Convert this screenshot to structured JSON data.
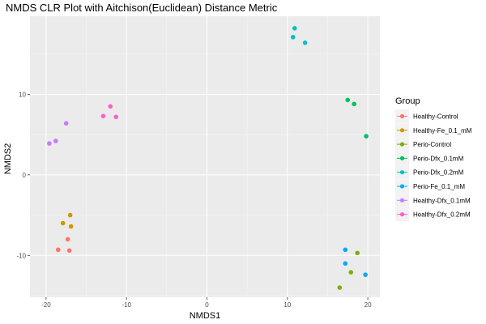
{
  "chart_data": {
    "type": "scatter",
    "title": "NMDS CLR Plot with Aitchison(Euclidean) Distance Metric",
    "xlabel": "NMDS1",
    "ylabel": "NMDS2",
    "xlim": [
      -22,
      21.5
    ],
    "ylim": [
      -15.2,
      19.7
    ],
    "xticks": [
      -20,
      -10,
      0,
      10,
      20
    ],
    "yticks": [
      -10,
      0,
      10
    ],
    "grid": true,
    "legend": {
      "title": "Group",
      "position": "right"
    },
    "series": [
      {
        "name": "Healthy-Control",
        "color": "#F8766D",
        "points": [
          [
            -18.5,
            -9.3
          ],
          [
            -17.3,
            -8.0
          ],
          [
            -17.1,
            -9.4
          ]
        ]
      },
      {
        "name": "Healthy-Fe_0.1_mM",
        "color": "#CD9600",
        "points": [
          [
            -17.0,
            -5.0
          ],
          [
            -17.9,
            -6.0
          ],
          [
            -16.9,
            -6.4
          ]
        ]
      },
      {
        "name": "Perio-Control",
        "color": "#7CAE00",
        "points": [
          [
            16.5,
            -14.0
          ],
          [
            17.9,
            -12.1
          ],
          [
            18.7,
            -9.7
          ]
        ]
      },
      {
        "name": "Perio-Dfx_0.1mM",
        "color": "#00BE67",
        "points": [
          [
            17.5,
            9.3
          ],
          [
            18.3,
            8.8
          ],
          [
            19.8,
            4.8
          ]
        ]
      },
      {
        "name": "Perio-Dfx_0.2mM",
        "color": "#00BFC4",
        "points": [
          [
            10.9,
            18.2
          ],
          [
            10.7,
            17.1
          ],
          [
            12.2,
            16.4
          ]
        ]
      },
      {
        "name": "Perio-Fe_0.1_mM",
        "color": "#00A9FF",
        "points": [
          [
            17.2,
            -9.3
          ],
          [
            17.2,
            -11.0
          ],
          [
            19.7,
            -12.4
          ]
        ]
      },
      {
        "name": "Healthy-Dfx_0.1mM",
        "color": "#C77CFF",
        "points": [
          [
            -17.5,
            6.4
          ],
          [
            -19.6,
            3.9
          ],
          [
            -18.8,
            4.2
          ]
        ]
      },
      {
        "name": "Healthy-Dfx_0.2mM",
        "color": "#FF61CC",
        "points": [
          [
            -12.0,
            8.5
          ],
          [
            -12.9,
            7.3
          ],
          [
            -11.3,
            7.2
          ]
        ]
      }
    ]
  }
}
